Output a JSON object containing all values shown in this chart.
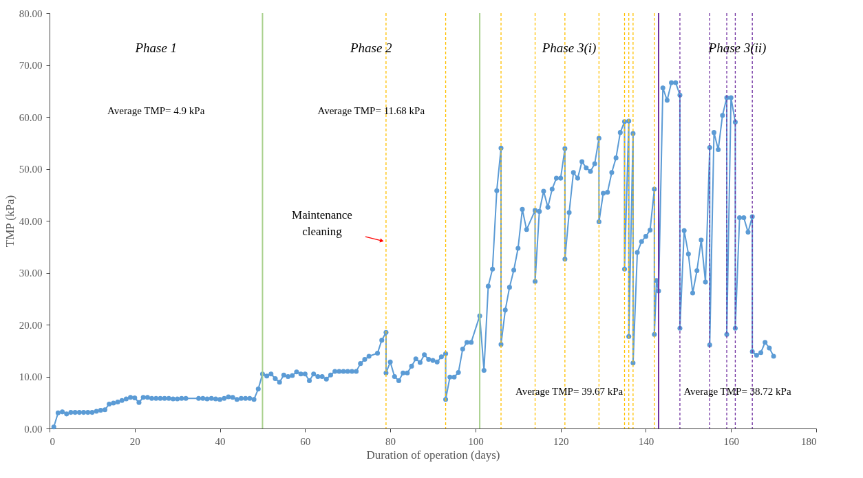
{
  "chart_data": {
    "type": "line",
    "xlabel": "Duration of operation (days)",
    "ylabel": "TMP (kPa)",
    "xlim": [
      0,
      180
    ],
    "xticks": [
      0,
      20,
      40,
      60,
      80,
      100,
      120,
      140,
      160,
      180
    ],
    "ylim": [
      0,
      80
    ],
    "yticks": [
      {
        "value": 0,
        "label": "0.00"
      },
      {
        "value": 10,
        "label": "10.00"
      },
      {
        "value": 20,
        "label": "20.00"
      },
      {
        "value": 30,
        "label": "30.00"
      },
      {
        "value": 40,
        "label": "40.00"
      },
      {
        "value": 50,
        "label": "50.00"
      },
      {
        "value": 60,
        "label": "60.00"
      },
      {
        "value": 70,
        "label": "70.00"
      },
      {
        "value": 80,
        "label": "80.00"
      }
    ],
    "marker": "circle",
    "line_style": "solid",
    "series": [
      {
        "color": "#5b9bd5",
        "x": [
          1,
          2,
          3,
          4,
          5,
          6,
          7,
          8,
          9,
          10,
          11,
          12,
          13,
          14,
          15,
          16,
          17,
          18,
          19,
          20,
          21,
          22,
          23,
          24,
          25,
          26,
          27,
          28,
          29,
          30,
          31,
          32,
          35,
          36,
          37,
          38,
          39,
          40,
          41,
          42,
          43,
          44,
          45,
          46,
          47,
          48,
          49,
          50,
          51,
          52,
          53,
          54,
          55,
          56,
          57,
          58,
          59,
          60,
          61,
          62,
          63,
          64,
          65,
          66,
          67,
          68,
          69,
          70,
          71,
          72,
          73,
          74,
          75,
          77,
          78,
          79,
          79,
          80,
          81,
          82,
          83,
          84,
          85,
          86,
          87,
          88,
          89,
          90,
          91,
          92,
          93,
          93,
          94,
          95,
          96,
          97,
          98,
          99,
          101,
          102,
          103,
          104,
          105,
          106,
          106,
          107,
          108,
          109,
          110,
          111,
          112,
          114,
          114,
          115,
          116,
          117,
          118,
          119,
          120,
          121,
          121,
          122,
          123,
          124,
          125,
          126,
          127,
          128,
          129,
          129,
          130,
          131,
          132,
          133,
          134,
          135,
          135,
          136,
          136,
          137,
          137,
          138,
          139,
          140,
          141,
          142,
          142,
          142.5,
          143,
          144,
          145,
          146,
          147,
          148,
          148,
          149,
          150,
          151,
          152,
          153,
          154,
          155,
          155,
          156,
          157,
          158,
          159,
          159,
          160,
          161,
          161,
          162,
          163,
          164,
          165,
          165,
          166,
          167,
          168,
          169,
          170
        ],
        "values": [
          0.3,
          3.0,
          3.2,
          2.8,
          3.1,
          3.1,
          3.1,
          3.1,
          3.1,
          3.1,
          3.3,
          3.5,
          3.6,
          4.7,
          4.9,
          5.1,
          5.4,
          5.7,
          6.0,
          5.9,
          5.0,
          6.0,
          6.0,
          5.8,
          5.8,
          5.8,
          5.8,
          5.8,
          5.7,
          5.7,
          5.8,
          5.8,
          5.8,
          5.8,
          5.7,
          5.8,
          5.7,
          5.6,
          5.8,
          6.1,
          6.0,
          5.6,
          5.8,
          5.8,
          5.8,
          5.6,
          7.6,
          10.5,
          10.1,
          10.5,
          9.6,
          8.9,
          10.3,
          10.0,
          10.2,
          10.9,
          10.5,
          10.5,
          9.2,
          10.5,
          10.0,
          10.0,
          9.5,
          10.3,
          11.0,
          11.0,
          11.0,
          11.0,
          11.0,
          11.0,
          12.5,
          13.3,
          13.9,
          14.5,
          17.0,
          18.5,
          10.7,
          12.8,
          10.0,
          9.2,
          10.7,
          10.7,
          12.0,
          13.4,
          12.7,
          14.2,
          13.3,
          13.1,
          12.8,
          13.8,
          14.4,
          5.6,
          9.9,
          9.9,
          10.8,
          15.3,
          16.6,
          16.6,
          21.7,
          11.2,
          27.4,
          30.7,
          45.8,
          54.0,
          16.2,
          22.8,
          27.2,
          30.5,
          34.7,
          42.2,
          38.3,
          42.0,
          28.3,
          41.8,
          45.7,
          42.6,
          46.1,
          48.2,
          48.2,
          53.9,
          32.6,
          41.6,
          49.3,
          48.2,
          51.4,
          50.2,
          49.5,
          51.0,
          55.9,
          39.8,
          45.3,
          45.5,
          49.3,
          52.1,
          57.0,
          59.1,
          30.7,
          59.2,
          17.7,
          56.8,
          12.6,
          33.9,
          36.0,
          37.0,
          38.2,
          46.1,
          18.1,
          28.5,
          26.5,
          65.6,
          63.2,
          66.6,
          66.6,
          64.2,
          19.3,
          38.1,
          33.6,
          26.1,
          30.4,
          36.3,
          28.2,
          54.1,
          16.1,
          57.0,
          53.7,
          60.3,
          63.7,
          18.1,
          63.7,
          59.0,
          19.3,
          40.6,
          40.6,
          37.8,
          40.8,
          14.8,
          14.1,
          14.6,
          16.6,
          15.5,
          13.9
        ]
      }
    ],
    "ref_lines": [
      {
        "axis": "x",
        "value": 50,
        "color": "#a9d18e",
        "line_style": "solid"
      },
      {
        "axis": "x",
        "value": 101,
        "color": "#a9d18e",
        "line_style": "solid"
      },
      {
        "axis": "x",
        "value": 143,
        "color": "#7030a0",
        "line_style": "solid"
      },
      {
        "axis": "x",
        "value": 79,
        "color": "#ffc000",
        "line_style": "dashed"
      },
      {
        "axis": "x",
        "value": 93,
        "color": "#ffc000",
        "line_style": "dashed"
      },
      {
        "axis": "x",
        "value": 106,
        "color": "#ffc000",
        "line_style": "dashed"
      },
      {
        "axis": "x",
        "value": 114,
        "color": "#ffc000",
        "line_style": "dashed"
      },
      {
        "axis": "x",
        "value": 121,
        "color": "#ffc000",
        "line_style": "dashed"
      },
      {
        "axis": "x",
        "value": 129,
        "color": "#ffc000",
        "line_style": "dashed"
      },
      {
        "axis": "x",
        "value": 135,
        "color": "#ffc000",
        "line_style": "dashed"
      },
      {
        "axis": "x",
        "value": 136,
        "color": "#ffc000",
        "line_style": "dashed"
      },
      {
        "axis": "x",
        "value": 137,
        "color": "#ffc000",
        "line_style": "dashed"
      },
      {
        "axis": "x",
        "value": 142,
        "color": "#ffc000",
        "line_style": "dashed"
      },
      {
        "axis": "x",
        "value": 148,
        "color": "#7030a0",
        "line_style": "dashed"
      },
      {
        "axis": "x",
        "value": 155,
        "color": "#7030a0",
        "line_style": "dashed"
      },
      {
        "axis": "x",
        "value": 159,
        "color": "#7030a0",
        "line_style": "dashed"
      },
      {
        "axis": "x",
        "value": 161,
        "color": "#7030a0",
        "line_style": "dashed"
      },
      {
        "axis": "x",
        "value": 165,
        "color": "#7030a0",
        "line_style": "dashed"
      }
    ],
    "annotations": [
      "Phase 1",
      "Phase 2",
      "Phase 3(i)",
      "Phase 3(ii)",
      "Average TMP= 4.9 kPa",
      "Average TMP= 11.68 kPa",
      "Average TMP= 39.67 kPa",
      "Average TMP= 38.72 kPa",
      {
        "text": "Maintenance\ncleaning",
        "x": 79,
        "y": 36
      }
    ]
  }
}
